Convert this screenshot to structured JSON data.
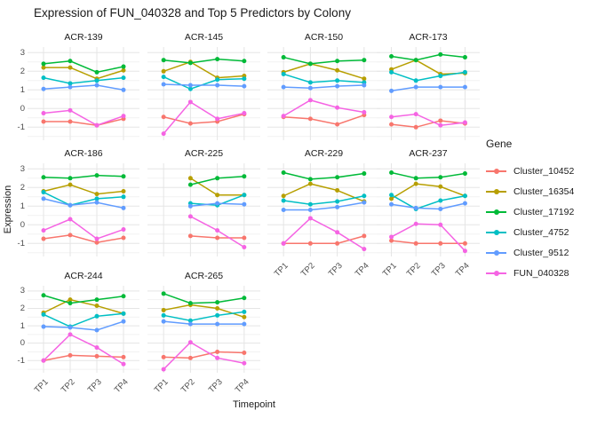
{
  "title": "Expression of FUN_040328 and Top 5 Predictors by Colony",
  "chart_data": {
    "type": "line",
    "title": "Expression of FUN_040328 and Top 5 Predictors by Colony",
    "xlabel": "Timepoint",
    "ylabel": "Expression",
    "legend_title": "Gene",
    "x_categories": [
      "TP1",
      "TP2",
      "TP3",
      "TP4"
    ],
    "y_ticks": [
      3,
      2,
      1,
      0,
      -1
    ],
    "y_minor_ticks": [
      2.5,
      1.5,
      0.5,
      -0.5,
      -1.5
    ],
    "ylim": [
      -1.7,
      3.3
    ],
    "grid": "on",
    "legend_position": "right",
    "series": [
      {
        "name": "Cluster_10452",
        "color": "#F8766D"
      },
      {
        "name": "Cluster_16354",
        "color": "#B79F00"
      },
      {
        "name": "Cluster_17192",
        "color": "#00BA38"
      },
      {
        "name": "Cluster_4752",
        "color": "#00BFC4"
      },
      {
        "name": "Cluster_9512",
        "color": "#619CFF"
      },
      {
        "name": "FUN_040328",
        "color": "#F564E3"
      }
    ],
    "facets": [
      {
        "name": "ACR-139",
        "values": {
          "Cluster_10452": [
            -0.7,
            -0.7,
            -0.9,
            -0.55
          ],
          "Cluster_16354": [
            2.2,
            2.2,
            1.6,
            2.05
          ],
          "Cluster_17192": [
            2.4,
            2.55,
            1.95,
            2.25
          ],
          "Cluster_4752": [
            1.65,
            1.35,
            1.5,
            1.65
          ],
          "Cluster_9512": [
            1.05,
            1.15,
            1.25,
            1.0
          ],
          "FUN_040328": [
            -0.25,
            -0.1,
            -0.9,
            -0.4
          ]
        }
      },
      {
        "name": "ACR-145",
        "values": {
          "Cluster_10452": [
            -0.45,
            -0.8,
            -0.7,
            -0.3
          ],
          "Cluster_16354": [
            2.0,
            2.5,
            1.65,
            1.75
          ],
          "Cluster_17192": [
            2.6,
            2.45,
            2.65,
            2.55
          ],
          "Cluster_4752": [
            1.7,
            1.05,
            1.55,
            1.6
          ],
          "Cluster_9512": [
            1.3,
            1.25,
            1.25,
            1.2
          ],
          "FUN_040328": [
            -1.35,
            0.35,
            -0.55,
            -0.25
          ]
        }
      },
      {
        "name": "ACR-150",
        "values": {
          "Cluster_10452": [
            -0.45,
            -0.55,
            -0.85,
            -0.35
          ],
          "Cluster_16354": [
            1.95,
            2.4,
            2.05,
            1.6
          ],
          "Cluster_17192": [
            2.75,
            2.4,
            2.55,
            2.6
          ],
          "Cluster_4752": [
            1.85,
            1.4,
            1.5,
            1.4
          ],
          "Cluster_9512": [
            1.15,
            1.1,
            1.2,
            1.25
          ],
          "FUN_040328": [
            -0.4,
            0.45,
            0.05,
            -0.2
          ]
        }
      },
      {
        "name": "ACR-173",
        "values": {
          "Cluster_10452": [
            -0.85,
            -1.0,
            -0.65,
            -0.8
          ],
          "Cluster_16354": [
            2.1,
            2.6,
            1.85,
            1.9
          ],
          "Cluster_17192": [
            2.8,
            2.6,
            2.9,
            2.75
          ],
          "Cluster_4752": [
            1.95,
            1.5,
            1.75,
            1.95
          ],
          "Cluster_9512": [
            0.95,
            1.15,
            1.15,
            1.15
          ],
          "FUN_040328": [
            -0.45,
            -0.3,
            -0.9,
            -0.75
          ]
        }
      },
      {
        "name": "ACR-186",
        "values": {
          "Cluster_10452": [
            -0.75,
            -0.55,
            -0.95,
            -0.7
          ],
          "Cluster_16354": [
            1.8,
            2.15,
            1.65,
            1.8
          ],
          "Cluster_17192": [
            2.55,
            2.5,
            2.65,
            2.6
          ],
          "Cluster_4752": [
            1.75,
            1.05,
            1.4,
            1.5
          ],
          "Cluster_9512": [
            1.4,
            1.05,
            1.2,
            0.9
          ],
          "FUN_040328": [
            -0.3,
            0.3,
            -0.75,
            -0.25
          ]
        }
      },
      {
        "name": "ACR-225",
        "values": {
          "Cluster_10452": [
            null,
            -0.6,
            -0.7,
            -0.7
          ],
          "Cluster_16354": [
            null,
            2.5,
            1.6,
            1.6
          ],
          "Cluster_17192": [
            null,
            2.15,
            2.5,
            2.6
          ],
          "Cluster_4752": [
            null,
            1.15,
            1.05,
            1.6
          ],
          "Cluster_9512": [
            null,
            1.0,
            1.15,
            1.1
          ],
          "FUN_040328": [
            null,
            0.45,
            -0.3,
            -1.2
          ]
        }
      },
      {
        "name": "ACR-229",
        "values": {
          "Cluster_10452": [
            -1.0,
            -1.0,
            -1.0,
            -0.6
          ],
          "Cluster_16354": [
            1.55,
            2.2,
            1.85,
            1.25
          ],
          "Cluster_17192": [
            2.8,
            2.45,
            2.55,
            2.75
          ],
          "Cluster_4752": [
            1.3,
            1.1,
            1.25,
            1.55
          ],
          "Cluster_9512": [
            0.8,
            0.8,
            0.95,
            1.2
          ],
          "FUN_040328": [
            -1.0,
            0.35,
            -0.4,
            -1.3
          ]
        }
      },
      {
        "name": "ACR-237",
        "values": {
          "Cluster_10452": [
            -0.85,
            -1.0,
            -1.0,
            -1.0
          ],
          "Cluster_16354": [
            1.4,
            2.2,
            2.05,
            1.55
          ],
          "Cluster_17192": [
            2.8,
            2.5,
            2.55,
            2.75
          ],
          "Cluster_4752": [
            1.6,
            0.85,
            1.3,
            1.55
          ],
          "Cluster_9512": [
            1.1,
            0.9,
            0.85,
            1.15
          ],
          "FUN_040328": [
            -0.65,
            0.05,
            0.0,
            -1.4
          ]
        }
      },
      {
        "name": "ACR-244",
        "values": {
          "Cluster_10452": [
            -1.0,
            -0.7,
            -0.75,
            -0.8
          ],
          "Cluster_16354": [
            1.75,
            2.5,
            2.15,
            1.7
          ],
          "Cluster_17192": [
            2.75,
            2.3,
            2.5,
            2.7
          ],
          "Cluster_4752": [
            1.65,
            0.95,
            1.55,
            1.7
          ],
          "Cluster_9512": [
            0.95,
            0.9,
            0.75,
            1.25
          ],
          "FUN_040328": [
            -1.0,
            0.5,
            -0.25,
            -1.2
          ]
        }
      },
      {
        "name": "ACR-265",
        "values": {
          "Cluster_10452": [
            -0.8,
            -0.85,
            -0.5,
            -0.55
          ],
          "Cluster_16354": [
            1.9,
            2.2,
            2.0,
            1.5
          ],
          "Cluster_17192": [
            2.85,
            2.3,
            2.35,
            2.6
          ],
          "Cluster_4752": [
            1.6,
            1.3,
            1.6,
            1.8
          ],
          "Cluster_9512": [
            1.25,
            1.1,
            1.1,
            1.1
          ],
          "FUN_040328": [
            -1.5,
            0.05,
            -0.85,
            -1.15
          ]
        }
      }
    ]
  },
  "colors": {
    "grid_major": "#E5E5E5",
    "grid_minor": "#F2F2F2",
    "tick_text": "#4d4d4d",
    "text": "#1a1a1a",
    "background": "#ffffff"
  }
}
